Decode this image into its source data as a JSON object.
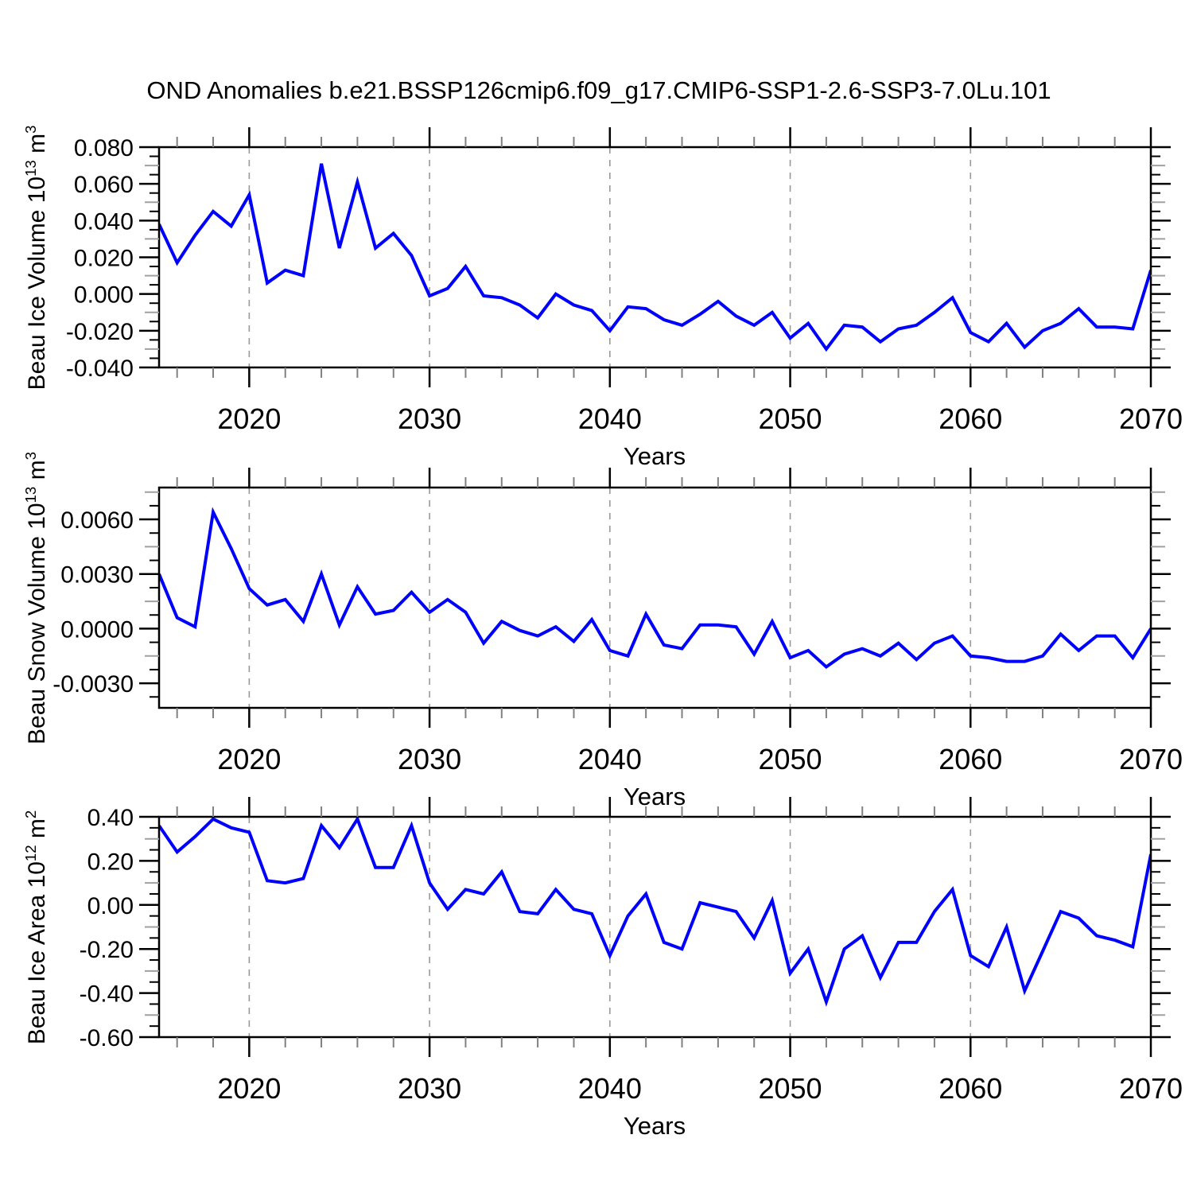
{
  "title": "OND Anomalies b.e21.BSSP126cmip6.f09_g17.CMIP6-SSP1-2.6-SSP3-7.0Lu.101",
  "xlabel": "Years",
  "colors": {
    "line": "#0000ff",
    "axis": "#000000",
    "grid": "#999999",
    "minor_tick_half": "#a0a0a0",
    "minor_tick_x": "#808080"
  },
  "x_axis": {
    "start": 2015,
    "end": 2070,
    "major_tick_years": [
      2020,
      2030,
      2040,
      2050,
      2060,
      2070
    ],
    "major_tick_labels": [
      "2020",
      "2030",
      "2040",
      "2050",
      "2060",
      "2070"
    ],
    "grid_years": [
      2020,
      2030,
      2040,
      2050,
      2060
    ],
    "minor_step": 2
  },
  "chart_data": [
    {
      "type": "line",
      "name": "beau-ice-volume",
      "ylabel_text": "Beau Ice Volume 10^13 m^3",
      "ylabel_parts": [
        {
          "text": "Beau Ice Volume 10"
        },
        {
          "text": "13",
          "sup": true
        },
        {
          "text": " m"
        },
        {
          "text": "3",
          "sup": true
        }
      ],
      "ylim": [
        -0.04,
        0.08
      ],
      "ytick_values": [
        0.08,
        0.06,
        0.04,
        0.02,
        0.0,
        -0.02,
        -0.04
      ],
      "ytick_labels": [
        "0.080",
        "0.060",
        "0.040",
        "0.020",
        "0.000",
        "-0.020",
        "-0.040"
      ],
      "y_major_step": 0.02,
      "y_minor_step": 0.005,
      "x_start": 2015,
      "x_step": 1,
      "values": [
        0.038,
        0.017,
        0.032,
        0.045,
        0.037,
        0.054,
        0.006,
        0.013,
        0.01,
        0.071,
        0.025,
        0.061,
        0.025,
        0.033,
        0.021,
        -0.001,
        0.003,
        0.015,
        -0.001,
        -0.002,
        -0.006,
        -0.013,
        0.0,
        -0.006,
        -0.009,
        -0.02,
        -0.007,
        -0.008,
        -0.014,
        -0.017,
        -0.011,
        -0.004,
        -0.012,
        -0.017,
        -0.01,
        -0.024,
        -0.016,
        -0.03,
        -0.017,
        -0.018,
        -0.026,
        -0.019,
        -0.017,
        -0.01,
        -0.002,
        -0.021,
        -0.026,
        -0.016,
        -0.029,
        -0.02,
        -0.016,
        -0.008,
        -0.018,
        -0.018,
        -0.019,
        0.013
      ]
    },
    {
      "type": "line",
      "name": "beau-snow-volume",
      "ylabel_text": "Beau Snow Volume 10^13 m^3",
      "ylabel_parts": [
        {
          "text": "Beau Snow Volume 10"
        },
        {
          "text": "13",
          "sup": true
        },
        {
          "text": " m"
        },
        {
          "text": "3",
          "sup": true
        }
      ],
      "ylim": [
        -0.00435,
        0.00775
      ],
      "ytick_values": [
        0.006,
        0.003,
        0.0,
        -0.003
      ],
      "ytick_labels": [
        "0.0060",
        "0.0030",
        "0.0000",
        "-0.0030"
      ],
      "y_major_step": 0.003,
      "y_minor_step": 0.00075,
      "x_start": 2015,
      "x_step": 1,
      "values": [
        0.003,
        0.0006,
        0.0001,
        0.0064,
        0.0044,
        0.0022,
        0.0013,
        0.0016,
        0.0004,
        0.003,
        0.0002,
        0.0023,
        0.0008,
        0.001,
        0.002,
        0.0009,
        0.0016,
        0.0009,
        -0.0008,
        0.0004,
        -0.0001,
        -0.0004,
        0.0001,
        -0.0007,
        0.0005,
        -0.0012,
        -0.0015,
        0.0008,
        -0.0009,
        -0.0011,
        0.0002,
        0.0002,
        0.0001,
        -0.0014,
        0.0004,
        -0.0016,
        -0.0012,
        -0.0021,
        -0.0014,
        -0.0011,
        -0.0015,
        -0.0008,
        -0.0017,
        -0.0008,
        -0.0004,
        -0.0015,
        -0.0016,
        -0.0018,
        -0.0018,
        -0.0015,
        -0.0003,
        -0.0012,
        -0.0004,
        -0.0004,
        -0.0016,
        0.0
      ]
    },
    {
      "type": "line",
      "name": "beau-ice-area",
      "ylabel_text": "Beau Ice Area 10^12 m^2",
      "ylabel_parts": [
        {
          "text": "Beau Ice Area 10"
        },
        {
          "text": "12",
          "sup": true
        },
        {
          "text": " m"
        },
        {
          "text": "2",
          "sup": true
        }
      ],
      "ylim": [
        -0.6,
        0.4
      ],
      "ytick_values": [
        0.4,
        0.2,
        0.0,
        -0.2,
        -0.4,
        -0.6
      ],
      "ytick_labels": [
        "0.40",
        "0.20",
        "0.00",
        "-0.20",
        "-0.40",
        "-0.60"
      ],
      "y_major_step": 0.2,
      "y_minor_step": 0.05,
      "x_start": 2015,
      "x_step": 1,
      "values": [
        0.36,
        0.24,
        0.31,
        0.39,
        0.35,
        0.33,
        0.11,
        0.1,
        0.12,
        0.36,
        0.26,
        0.39,
        0.17,
        0.17,
        0.36,
        0.1,
        -0.02,
        0.07,
        0.05,
        0.15,
        -0.03,
        -0.04,
        0.07,
        -0.02,
        -0.04,
        -0.23,
        -0.05,
        0.05,
        -0.17,
        -0.2,
        0.01,
        -0.01,
        -0.03,
        -0.15,
        0.02,
        -0.31,
        -0.2,
        -0.44,
        -0.2,
        -0.14,
        -0.33,
        -0.17,
        -0.17,
        -0.03,
        0.07,
        -0.23,
        -0.28,
        -0.1,
        -0.39,
        -0.21,
        -0.03,
        -0.06,
        -0.14,
        -0.16,
        -0.19,
        0.23
      ]
    }
  ]
}
